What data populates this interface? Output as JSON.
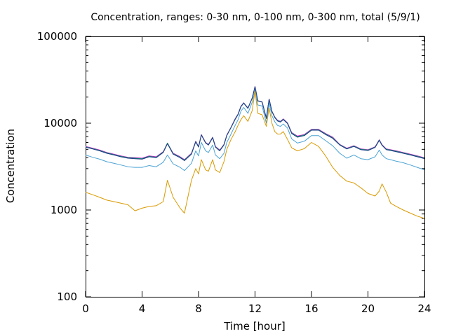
{
  "chart_data": {
    "type": "line",
    "title": "Concentration, ranges: 0-30 nm, 0-100 nm, 0-300 nm, total (5/9/1)",
    "xlabel": "Time [hour]",
    "ylabel": "Concentration",
    "xlim": [
      0,
      24
    ],
    "ylim": [
      100,
      100000
    ],
    "yscale": "log",
    "grid": false,
    "legend": "none",
    "x_ticks": [
      0,
      4,
      8,
      12,
      16,
      20,
      24
    ],
    "x_tick_labels": [
      "0",
      "4",
      "8",
      "12",
      "16",
      "20",
      "24"
    ],
    "y_ticks": [
      100,
      1000,
      10000,
      100000
    ],
    "y_tick_labels": [
      "100",
      "1000",
      "10000",
      "100000"
    ],
    "x": [
      0,
      0.5,
      1,
      1.5,
      2,
      2.5,
      3,
      3.5,
      4,
      4.5,
      5,
      5.5,
      5.8,
      6.2,
      6.7,
      7,
      7.5,
      7.8,
      8,
      8.2,
      8.5,
      8.7,
      9,
      9.2,
      9.5,
      9.8,
      10,
      10.3,
      10.6,
      10.8,
      11,
      11.2,
      11.5,
      11.8,
      12,
      12.2,
      12.5,
      12.8,
      13,
      13.2,
      13.4,
      13.6,
      13.8,
      14,
      14.3,
      14.6,
      15,
      15.5,
      16,
      16.5,
      17,
      17.5,
      18,
      18.5,
      19,
      19.5,
      20,
      20.5,
      20.8,
      21,
      21.3,
      21.6,
      22,
      22.5,
      23,
      23.5,
      24
    ],
    "series": [
      {
        "color": "#cc00cc",
        "values": [
          5400,
          5150,
          4900,
          4600,
          4400,
          4200,
          4050,
          4000,
          3950,
          4200,
          4100,
          4700,
          5900,
          4500,
          4100,
          3800,
          4500,
          6200,
          5400,
          7400,
          6000,
          5700,
          6900,
          5400,
          4900,
          5700,
          7300,
          9000,
          11300,
          12800,
          15700,
          17200,
          15000,
          19600,
          26500,
          18200,
          17700,
          11500,
          19000,
          13800,
          11800,
          10800,
          10500,
          11200,
          10100,
          7800,
          7100,
          7400,
          8500,
          8500,
          7600,
          6900,
          5700,
          5150,
          5500,
          5050,
          4950,
          5350,
          6450,
          5650,
          5050,
          4950,
          4800,
          4600,
          4400,
          4200,
          4000
        ]
      },
      {
        "color": "#00aa66",
        "values": [
          5350,
          5100,
          4850,
          4550,
          4350,
          4150,
          4000,
          3950,
          3900,
          4150,
          4050,
          4650,
          5900,
          4450,
          4050,
          3750,
          4450,
          6150,
          5350,
          7350,
          5950,
          5650,
          6850,
          5350,
          4850,
          5650,
          7250,
          8950,
          11200,
          12700,
          15600,
          17100,
          14900,
          19500,
          26300,
          18100,
          17600,
          11400,
          18900,
          13700,
          11700,
          10700,
          10400,
          11100,
          10000,
          7700,
          7000,
          7300,
          8400,
          8400,
          7500,
          6800,
          5650,
          5100,
          5450,
          5000,
          4900,
          5300,
          6400,
          5600,
          5000,
          4900,
          4750,
          4550,
          4350,
          4150,
          3950
        ]
      },
      {
        "color": "#1f3a8a",
        "values": [
          5300,
          5050,
          4800,
          4500,
          4300,
          4100,
          3950,
          3900,
          3850,
          4100,
          4000,
          4600,
          5800,
          4400,
          4000,
          3700,
          4400,
          6100,
          5300,
          7300,
          5900,
          5600,
          6800,
          5300,
          4800,
          5600,
          7200,
          8900,
          11100,
          12600,
          15500,
          17000,
          14800,
          19400,
          26200,
          18000,
          17500,
          11300,
          18800,
          13600,
          11600,
          10600,
          10300,
          11000,
          9900,
          7600,
          6900,
          7200,
          8300,
          8300,
          7400,
          6700,
          5600,
          5050,
          5400,
          4950,
          4850,
          5250,
          6350,
          5550,
          4950,
          4850,
          4700,
          4500,
          4300,
          4100,
          3900
        ]
      },
      {
        "color": "#4aa3d4",
        "values": [
          4300,
          4050,
          3850,
          3600,
          3450,
          3300,
          3150,
          3100,
          3100,
          3250,
          3150,
          3550,
          4300,
          3400,
          3100,
          2850,
          3450,
          4800,
          4200,
          6000,
          4800,
          4600,
          5600,
          4300,
          3900,
          4500,
          6000,
          7500,
          9500,
          11000,
          13800,
          15200,
          13000,
          17500,
          24000,
          16200,
          15800,
          10000,
          17000,
          12200,
          10400,
          9400,
          9200,
          9800,
          8800,
          6600,
          5900,
          6200,
          7200,
          7200,
          6300,
          5500,
          4500,
          3950,
          4300,
          3900,
          3800,
          4100,
          4900,
          4300,
          3900,
          3800,
          3650,
          3500,
          3300,
          3100,
          2900
        ]
      },
      {
        "color": "#d99a00",
        "values": [
          1600,
          1500,
          1400,
          1300,
          1250,
          1200,
          1150,
          980,
          1050,
          1100,
          1120,
          1250,
          2200,
          1400,
          1050,
          920,
          2200,
          3000,
          2600,
          3800,
          2900,
          2800,
          3800,
          2900,
          2700,
          3600,
          5000,
          6500,
          8000,
          9500,
          11000,
          12200,
          10500,
          14000,
          23500,
          13000,
          12500,
          9200,
          15000,
          10000,
          8000,
          7500,
          7500,
          8000,
          6500,
          5200,
          4800,
          5100,
          6000,
          5400,
          4200,
          3100,
          2500,
          2150,
          2050,
          1800,
          1550,
          1450,
          1650,
          2000,
          1600,
          1200,
          1100,
          1000,
          920,
          850,
          800
        ]
      }
    ]
  }
}
